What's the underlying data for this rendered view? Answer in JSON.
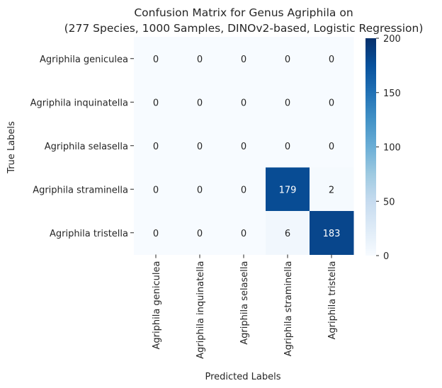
{
  "chart_data": {
    "type": "heatmap",
    "title_line1": "Confusion Matrix for Genus Agriphila on",
    "title_line2": "(277 Species, 1000 Samples, DINOv2-based, Logistic Regression)",
    "xlabel": "Predicted Labels",
    "ylabel": "True Labels",
    "row_labels": [
      "Agriphila geniculea",
      "Agriphila inquinatella",
      "Agriphila selasella",
      "Agriphila straminella",
      "Agriphila tristella"
    ],
    "col_labels": [
      "Agriphila geniculea",
      "Agriphila inquinatella",
      "Agriphila selasella",
      "Agriphila straminella",
      "Agriphila tristella"
    ],
    "values": [
      [
        0,
        0,
        0,
        0,
        0
      ],
      [
        0,
        0,
        0,
        0,
        0
      ],
      [
        0,
        0,
        0,
        0,
        0
      ],
      [
        0,
        0,
        0,
        179,
        2
      ],
      [
        0,
        0,
        0,
        6,
        183
      ]
    ],
    "colorbar": {
      "min": 0,
      "max": 200,
      "ticks": [
        0,
        50,
        100,
        150,
        200
      ],
      "colormap": "Blues"
    }
  }
}
